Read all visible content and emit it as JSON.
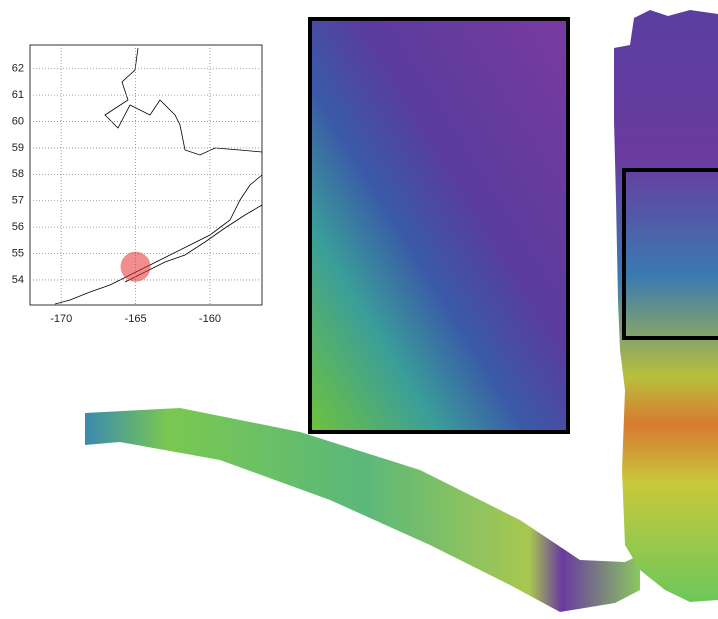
{
  "locator_map": {
    "xlim": [
      -172.1,
      -156.5
    ],
    "ylim": [
      53.05,
      62.9
    ],
    "xticks": [
      -170,
      -165,
      -160
    ],
    "yticks": [
      54,
      55,
      56,
      57,
      58,
      59,
      60,
      61,
      62
    ],
    "grid": true,
    "marker": {
      "lon": -165,
      "lat": 54.5,
      "color": "#e63030"
    }
  }
}
